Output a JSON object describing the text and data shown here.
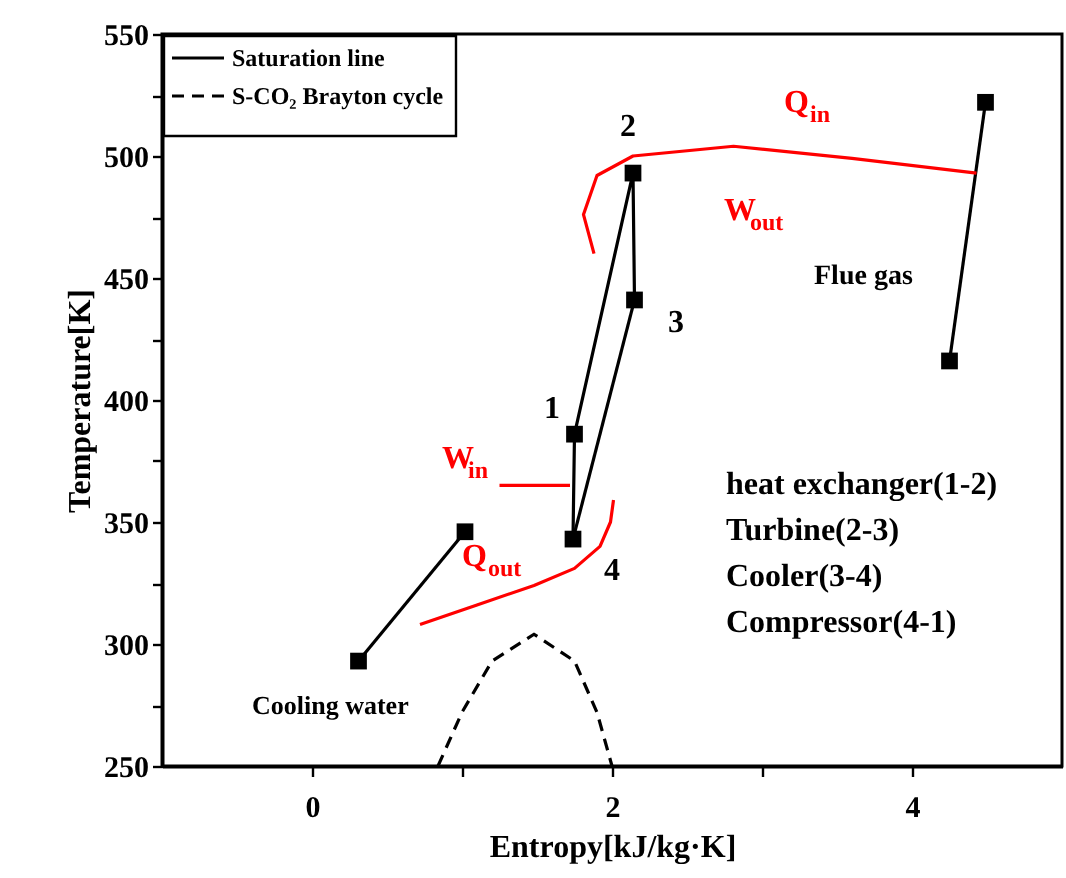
{
  "chart_data": {
    "type": "line",
    "xlabel": "Entropy[kJ/kg·K]",
    "ylabel": "Temperature[K]",
    "xlim": [
      -1,
      5
    ],
    "xticks": [
      0,
      {
        "value": 1,
        "label": null
      },
      2,
      {
        "value": 3,
        "label": null
      },
      4
    ],
    "ylim": [
      250,
      550
    ],
    "yticks": [
      250,
      {
        "value": 275,
        "label": null
      },
      300,
      {
        "value": 325,
        "label": null
      },
      350,
      {
        "value": 375,
        "label": null
      },
      400,
      {
        "value": 425,
        "label": null
      },
      450,
      {
        "value": 475,
        "label": null
      },
      500,
      {
        "value": 525,
        "label": null
      },
      550
    ],
    "grid": false,
    "legend": "top left",
    "series": [
      {
        "name": "Saturation line",
        "color": "#000000",
        "marker": "square",
        "line_style": "solid",
        "x": [
          1.74,
          1.75,
          2.14,
          2.15
        ],
        "values": [
          343,
          386,
          493,
          441
        ]
      },
      {
        "color": "#000000",
        "marker": "none",
        "line_style": "solid",
        "x": [
          1.74,
          2.15
        ],
        "values": [
          343,
          441
        ]
      },
      {
        "name": "S-CO₂ Brayton cycle",
        "color": "#000000",
        "marker": "none",
        "line_style": "dashed",
        "x": [
          0.84,
          1.0,
          1.2,
          1.48,
          1.75,
          1.9,
          2.0
        ],
        "values": [
          250,
          272,
          293,
          304,
          293,
          272,
          250
        ]
      },
      {
        "color": "#000000",
        "marker": "square",
        "line_style": "solid",
        "x": [
          4.25,
          4.49
        ],
        "values": [
          416,
          522
        ]
      },
      {
        "color": "#000000",
        "marker": "square",
        "line_style": "solid",
        "x": [
          0.31,
          1.02
        ],
        "values": [
          293,
          346
        ]
      },
      {
        "color": "#ff0000",
        "marker": "none",
        "line_style": "solid",
        "x": [
          4.43,
          3.6,
          2.81,
          2.14,
          1.9,
          1.81,
          1.88
        ],
        "values": [
          493,
          499,
          504,
          500,
          492,
          476,
          460
        ]
      },
      {
        "color": "#ff0000",
        "marker": "none",
        "line_style": "solid",
        "x": [
          2.01,
          1.99,
          1.92,
          1.75,
          1.48,
          1.1,
          0.72
        ],
        "values": [
          359,
          350,
          340,
          331,
          324,
          316,
          308
        ]
      },
      {
        "color": "#ff0000",
        "marker": "none",
        "line_style": "solid",
        "x": [
          1.25,
          1.72
        ],
        "values": [
          365,
          365
        ]
      }
    ],
    "annotations": [
      "1",
      "2",
      "3",
      "4",
      "Q$_{in}$",
      "W$_{out}$",
      "W$_{in}$",
      "Q$_{out}$",
      "Flue gas",
      "Cooling water",
      "heat exchanger(1-2)",
      "Turbine(2-3)",
      "Cooler(3-4)",
      "Compressor(4-1)"
    ]
  }
}
